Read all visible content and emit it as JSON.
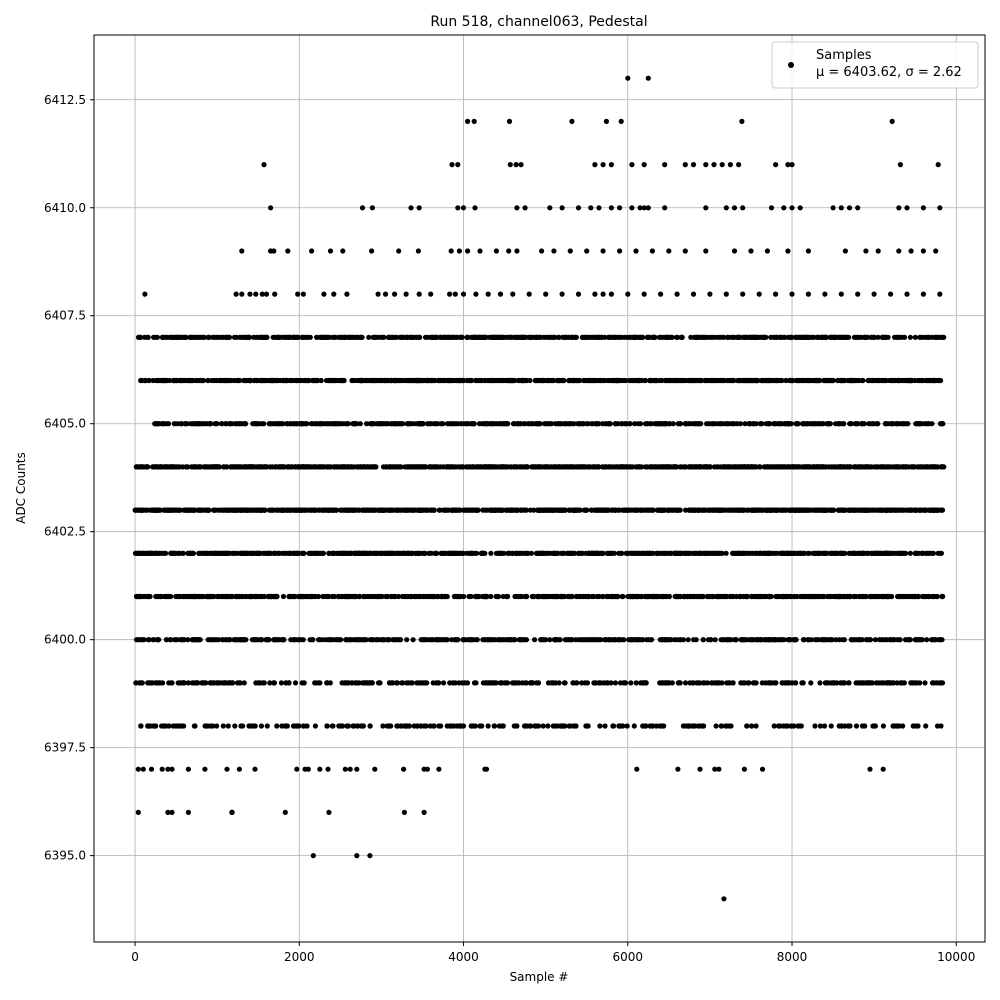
{
  "chart_data": {
    "type": "scatter",
    "title": "Run 518, channel063, Pedestal",
    "xlabel": "Sample #",
    "ylabel": "ADC Counts",
    "xlim": [
      -500,
      10350
    ],
    "ylim": [
      6393.0,
      6414.0
    ],
    "xticks": [
      0,
      2000,
      4000,
      6000,
      8000,
      10000
    ],
    "yticks": [
      6395.0,
      6397.5,
      6400.0,
      6402.5,
      6405.0,
      6407.5,
      6410.0,
      6412.5
    ],
    "xtick_labels": [
      "0",
      "2000",
      "4000",
      "6000",
      "8000",
      "10000"
    ],
    "ytick_labels": [
      "6395.0",
      "6397.5",
      "6400.0",
      "6402.5",
      "6405.0",
      "6407.5",
      "6410.0",
      "6412.5"
    ],
    "grid": true,
    "legend_position": "top-right",
    "marker_color": "#000000",
    "series": [
      {
        "name": "Samples",
        "stats_label": "μ = 6403.62, σ = 2.62",
        "mean": 6403.62,
        "std": 2.62,
        "x_range": [
          0,
          9850
        ],
        "levels": [
          {
            "y": 6394,
            "x": [
              7170
            ]
          },
          {
            "y": 6395,
            "x": [
              2170,
              2700,
              2860
            ]
          },
          {
            "y": 6396,
            "x": [
              40,
              400,
              450,
              650,
              1180,
              1180,
              1180,
              1180,
              1830,
              2360,
              3280,
              3520
            ]
          },
          {
            "y": 6397,
            "x": [
              40,
              100,
              200,
              330,
              400,
              450,
              650,
              850,
              1120,
              1270,
              1460,
              1970,
              2070,
              2110,
              2250,
              2350,
              2560,
              2620,
              2700,
              2920,
              3270,
              3520,
              3560,
              3700,
              4260,
              4280,
              6110,
              6610,
              6880,
              7060,
              7110,
              7420,
              7640,
              8950,
              9110
            ]
          },
          {
            "y": 6408,
            "x": [
              120,
              1230,
              1300,
              1400,
              1470,
              1550,
              1600,
              1700,
              1980,
              2050,
              2300,
              2420,
              2580,
              2960,
              3050,
              3160,
              3300,
              3460,
              3600,
              3830,
              3900,
              4000,
              4150,
              4300,
              4450,
              4600,
              4800,
              5000,
              5200,
              5400,
              5600,
              5700,
              5800,
              6000,
              6200,
              6400,
              6600,
              6800,
              7000,
              7200,
              7400,
              7600,
              7800,
              8000,
              8200,
              8400,
              8600,
              8800,
              9000,
              9200,
              9400,
              9600,
              9800
            ]
          },
          {
            "y": 6409,
            "x": [
              1300,
              1650,
              1690,
              1860,
              2150,
              2380,
              2530,
              2880,
              3210,
              3450,
              3850,
              3950,
              4050,
              4200,
              4400,
              4550,
              4650,
              4950,
              5100,
              5300,
              5500,
              5700,
              5900,
              6100,
              6300,
              6500,
              6700,
              6950,
              7300,
              7500,
              7700,
              7950,
              8200,
              8650,
              8900,
              9050,
              9300,
              9450,
              9600,
              9750
            ]
          },
          {
            "y": 6410,
            "x": [
              1650,
              2770,
              2890,
              3360,
              3460,
              3930,
              4000,
              4140,
              4650,
              4750,
              5050,
              5200,
              5400,
              5550,
              5650,
              5800,
              5900,
              6050,
              6150,
              6200,
              6250,
              6450,
              6950,
              7200,
              7300,
              7400,
              7750,
              7900,
              8000,
              8100,
              8500,
              8600,
              8700,
              8800,
              9300,
              9400,
              9600,
              9800
            ]
          },
          {
            "y": 6411,
            "x": [
              1570,
              3860,
              3930,
              4570,
              4640,
              4700,
              5600,
              5700,
              5800,
              6050,
              6200,
              6450,
              6700,
              6800,
              6950,
              7050,
              7150,
              7250,
              7350,
              7800,
              7950,
              8000,
              9320,
              9780
            ]
          },
          {
            "y": 6412,
            "x": [
              4050,
              4130,
              4560,
              5320,
              5740,
              5920,
              7390,
              9220
            ]
          },
          {
            "y": 6413,
            "x": [
              6000,
              6250
            ]
          }
        ],
        "dense_levels": [
          {
            "y": 6398,
            "x_range": [
              30,
              9850
            ],
            "n": 250,
            "seed": 8
          },
          {
            "y": 6399,
            "x_range": [
              0,
              9850
            ],
            "n": 380,
            "seed": 9
          },
          {
            "y": 6400,
            "x_range": [
              0,
              9850
            ],
            "n": 520,
            "seed": 10
          },
          {
            "y": 6401,
            "x_range": [
              0,
              9850
            ],
            "n": 680,
            "seed": 11
          },
          {
            "y": 6402,
            "x_range": [
              0,
              9850
            ],
            "n": 820,
            "seed": 12
          },
          {
            "y": 6403,
            "x_range": [
              0,
              9850
            ],
            "n": 900,
            "seed": 13
          },
          {
            "y": 6404,
            "x_range": [
              0,
              9850
            ],
            "n": 880,
            "seed": 14
          },
          {
            "y": 6405,
            "x_range": [
              230,
              9850
            ],
            "n": 560,
            "seed": 15
          },
          {
            "y": 6406,
            "x_range": [
              40,
              9850
            ],
            "n": 780,
            "seed": 16
          },
          {
            "y": 6407,
            "x_range": [
              40,
              9850
            ],
            "n": 620,
            "seed": 17
          }
        ]
      }
    ]
  }
}
